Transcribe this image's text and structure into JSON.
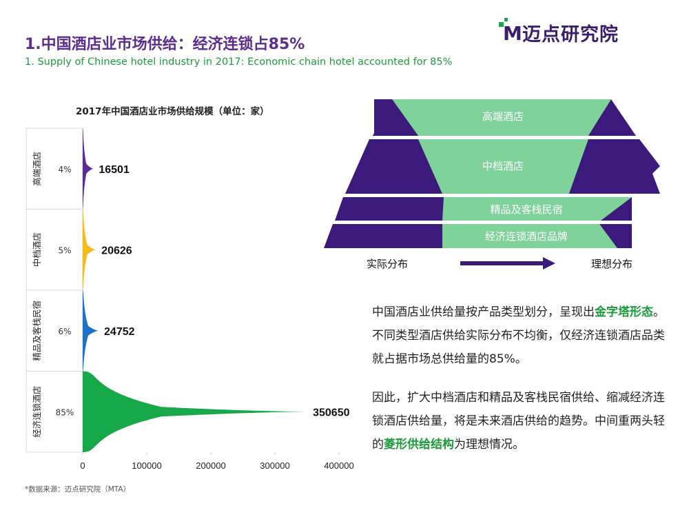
{
  "header": {
    "title_zh": "1.中国酒店业市场供给：经济连锁占85%",
    "title_en": "1. Supply of Chinese hotel industry in 2017: Economic chain hotel accounted for 85%",
    "logo_text": "迈点研究院",
    "logo_mark": "M"
  },
  "chart_data": {
    "type": "area",
    "orientation": "horizontal",
    "title": "2017年中国酒店业市场供给规模（单位：家）",
    "categories": [
      "高端酒店",
      "中档酒店",
      "精品及客栈民宿",
      "经济连锁酒店"
    ],
    "values": [
      16501,
      20626,
      24752,
      350650
    ],
    "shares": [
      "4%",
      "5%",
      "6%",
      "85%"
    ],
    "colors": [
      "#5b2d90",
      "#f4bb1c",
      "#1e74c4",
      "#17a84a"
    ],
    "xlim": [
      0,
      400000
    ],
    "xticks": [
      0,
      100000,
      200000,
      300000,
      400000
    ]
  },
  "source_note": "*数据来源：迈点研究院（MTA）",
  "pyramid": {
    "layers": [
      "高端酒店",
      "中档酒店",
      "精品及客栈民宿",
      "经济连锁酒店品牌"
    ],
    "label_actual": "实际分布",
    "label_ideal": "理想分布",
    "colors": {
      "dark": "#3b1a7c",
      "light": "#7fd39a"
    }
  },
  "text": {
    "p1_a": "中国酒店业供给量按产品类型划分，呈现出",
    "p1_hl": "金字塔形态",
    "p1_b": "。不同类型酒店供给实际分布不均衡，仅经济连锁酒店品类就占据市场总供给量的85%。",
    "p2_a": "因此，扩大中档酒店和精品及客栈民宿供给、缩减经济连锁酒店供给量，将是未来酒店供给的趋势。中间重两头轻的",
    "p2_hl": "菱形供给结构",
    "p2_b": "为理想情况。"
  }
}
